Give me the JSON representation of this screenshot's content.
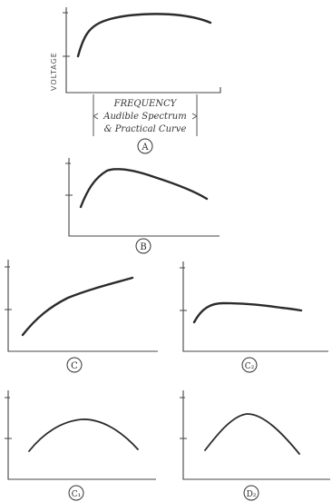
{
  "figure": {
    "ylabel": "VOLTAGE",
    "freq_label": [
      "FREQUENCY",
      "Audible Spectrum",
      "& Practical Curve"
    ]
  },
  "panels": [
    {
      "id": "A",
      "caption": "A"
    },
    {
      "id": "B",
      "caption": "B"
    },
    {
      "id": "C1",
      "caption": "C"
    },
    {
      "id": "C2",
      "caption": "C₂"
    },
    {
      "id": "D1",
      "caption": "C₁"
    },
    {
      "id": "D2",
      "caption": "D₂"
    }
  ]
}
